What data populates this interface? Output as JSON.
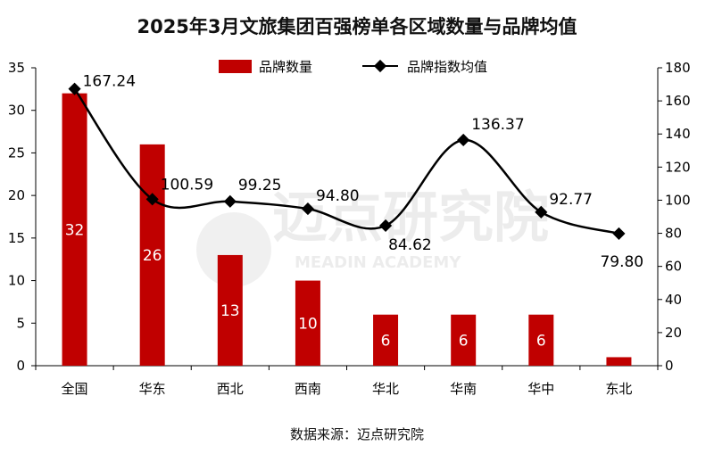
{
  "colors": {
    "bar": "#c00000",
    "line": "#000000",
    "axis": "#000000"
  },
  "source_text": "数据来源：迈点研究院",
  "watermark": {
    "cn": "迈点研究院",
    "en": "MEADIN ACADEMY"
  },
  "chart_data": {
    "type": "bar+line",
    "title": "2025年3月文旅集团百强榜单各区域数量与品牌均值",
    "categories": [
      "全国",
      "华东",
      "西北",
      "西南",
      "华北",
      "华南",
      "华中",
      "东北"
    ],
    "series": [
      {
        "name": "品牌数量",
        "type": "bar",
        "axis": "left",
        "values": [
          32,
          26,
          13,
          10,
          6,
          6,
          6,
          1
        ],
        "labels": [
          "32",
          "26",
          "13",
          "10",
          "6",
          "6",
          "6",
          ""
        ]
      },
      {
        "name": "品牌指数均值",
        "type": "line",
        "axis": "right",
        "values": [
          167.24,
          100.59,
          99.25,
          94.8,
          84.62,
          136.37,
          92.77,
          79.8
        ],
        "labels": [
          "167.24",
          "100.59",
          "99.25",
          "94.80",
          "84.62",
          "136.37",
          "92.77",
          "79.80"
        ]
      }
    ],
    "y_left": {
      "min": 0,
      "max": 35,
      "step": 5,
      "ticks": [
        "0",
        "5",
        "10",
        "15",
        "20",
        "25",
        "30",
        "35"
      ]
    },
    "y_right": {
      "min": 0,
      "max": 180,
      "step": 20,
      "ticks": [
        "0",
        "20",
        "40",
        "60",
        "80",
        "100",
        "120",
        "140",
        "160",
        "180"
      ]
    },
    "legend": {
      "placement": "top-center",
      "bar_label": "品牌数量",
      "line_label": "品牌指数均值"
    },
    "grid": false
  }
}
